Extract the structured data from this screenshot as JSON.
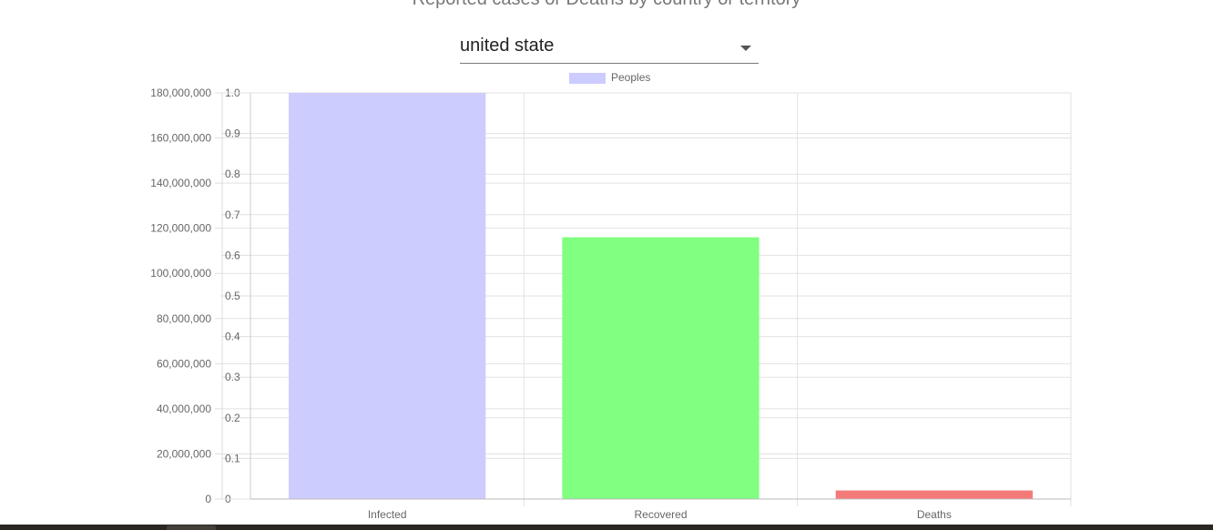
{
  "header": {
    "title": "Reported cases or Deaths by country or territory"
  },
  "country_select": {
    "value": "united state",
    "icon": "caret-down-icon"
  },
  "chart_data": {
    "type": "bar",
    "categories": [
      "Infected",
      "Recovered",
      "Deaths"
    ],
    "series": [
      {
        "name": "Peoples",
        "values": [
          180000000,
          116000000,
          3800000
        ],
        "colors": [
          "#ccccff",
          "#80ff80",
          "#f47a7a"
        ]
      }
    ],
    "legend": {
      "position": "top",
      "label": "Peoples",
      "color": "#ccccff"
    },
    "y_axis_left": {
      "ylim": [
        0,
        180000000
      ],
      "ticks": [
        "0",
        "20,000,000",
        "40,000,000",
        "60,000,000",
        "80,000,000",
        "100,000,000",
        "120,000,000",
        "140,000,000",
        "160,000,000",
        "180,000,000"
      ]
    },
    "y_axis_right": {
      "ylim": [
        0,
        1.0
      ],
      "ticks": [
        "0",
        "0.1",
        "0.2",
        "0.3",
        "0.4",
        "0.5",
        "0.6",
        "0.7",
        "0.8",
        "0.9",
        "1.0"
      ]
    },
    "grid": true
  }
}
